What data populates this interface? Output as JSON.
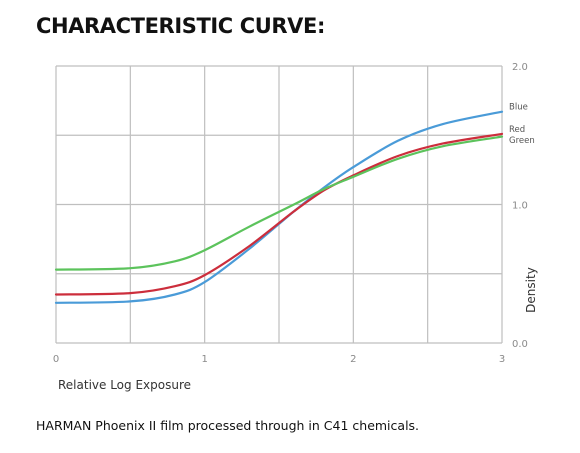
{
  "title": "CHARACTERISTIC CURVE:",
  "caption": "HARMAN Phoenix II film processed through in C41 chemicals.",
  "chart_data": {
    "type": "line",
    "title": "CHARACTERISTIC CURVE:",
    "xlabel": "Relative Log Exposure",
    "ylabel": "Density",
    "xlim": [
      0,
      3
    ],
    "ylim": [
      0,
      2.0
    ],
    "x_ticks": [
      0,
      1,
      2,
      3
    ],
    "x_tick_labels": [
      "0",
      "1",
      "2",
      "3"
    ],
    "y_ticks": [
      0,
      1.0,
      2.0
    ],
    "y_tick_labels": [
      "0.0",
      "1.0",
      "2.0"
    ],
    "grid": true,
    "legend": "end-of-line labels at right",
    "series": [
      {
        "name": "Blue",
        "color": "#4a9bd8",
        "x": [
          0,
          0.5,
          0.8,
          1.0,
          1.3,
          1.6,
          1.8,
          2.0,
          2.3,
          2.6,
          3.0
        ],
        "y": [
          0.29,
          0.3,
          0.35,
          0.44,
          0.68,
          0.95,
          1.12,
          1.27,
          1.46,
          1.58,
          1.67
        ]
      },
      {
        "name": "Red",
        "color": "#cc2e3c",
        "x": [
          0,
          0.5,
          0.8,
          1.0,
          1.3,
          1.6,
          1.8,
          2.0,
          2.3,
          2.6,
          3.0
        ],
        "y": [
          0.35,
          0.36,
          0.41,
          0.49,
          0.7,
          0.95,
          1.1,
          1.21,
          1.35,
          1.44,
          1.51
        ]
      },
      {
        "name": "Green",
        "color": "#5cc35c",
        "x": [
          0,
          0.5,
          0.8,
          1.0,
          1.3,
          1.6,
          1.8,
          2.0,
          2.3,
          2.6,
          3.0
        ],
        "y": [
          0.53,
          0.54,
          0.59,
          0.67,
          0.84,
          1.0,
          1.11,
          1.2,
          1.33,
          1.42,
          1.49
        ]
      }
    ]
  }
}
